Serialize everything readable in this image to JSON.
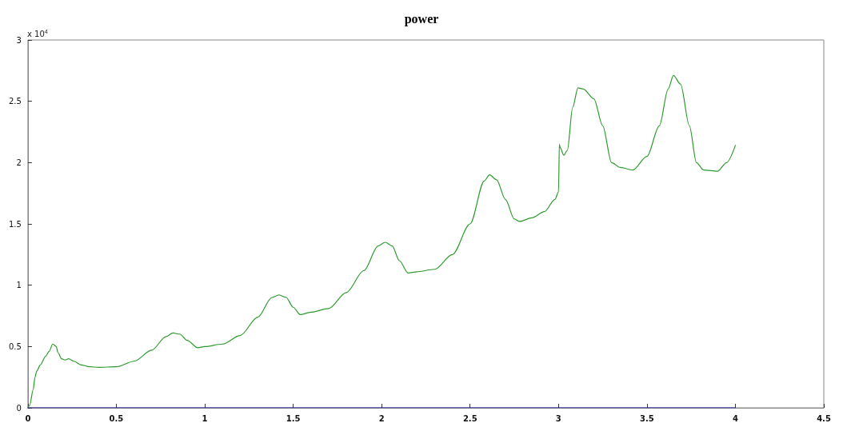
{
  "chart_data": {
    "type": "line",
    "title": "power",
    "annotations": [
      "x 10$^{4}$"
    ],
    "xlim": [
      0,
      4.5
    ],
    "xticks": [
      0,
      0.5,
      1,
      1.5,
      2,
      2.5,
      3,
      3.5,
      4,
      4.5
    ],
    "ylim": [
      0,
      3
    ],
    "yticks": [
      0,
      0.5,
      1,
      1.5,
      2,
      2.5,
      3
    ],
    "grid": false,
    "marker": "none",
    "line_style": "solid",
    "series": [
      {
        "color": "#2e9a2e",
        "x": [
          0,
          0.01,
          0.03,
          0.04,
          0.05,
          0.07,
          0.1,
          0.12,
          0.14,
          0.16,
          0.17,
          0.19,
          0.21,
          0.23,
          0.26,
          0.3,
          0.35,
          0.4,
          0.5,
          0.6,
          0.7,
          0.78,
          0.82,
          0.86,
          0.9,
          0.96,
          1.0,
          1.1,
          1.2,
          1.3,
          1.38,
          1.42,
          1.46,
          1.5,
          1.54,
          1.6,
          1.7,
          1.8,
          1.9,
          1.98,
          2.02,
          2.06,
          2.1,
          2.15,
          2.2,
          2.3,
          2.4,
          2.5,
          2.58,
          2.61,
          2.65,
          2.7,
          2.75,
          2.78,
          2.85,
          2.92,
          2.98,
          3.0,
          3.005,
          3.01,
          3.03,
          3.05,
          3.08,
          3.11,
          3.14,
          3.2,
          3.25,
          3.3,
          3.35,
          3.42,
          3.5,
          3.57,
          3.62,
          3.65,
          3.69,
          3.74,
          3.78,
          3.82,
          3.9,
          3.95,
          4.0
        ],
        "values": [
          0,
          0.02,
          0.15,
          0.25,
          0.3,
          0.35,
          0.42,
          0.46,
          0.52,
          0.5,
          0.45,
          0.4,
          0.39,
          0.4,
          0.38,
          0.35,
          0.335,
          0.33,
          0.335,
          0.38,
          0.47,
          0.58,
          0.61,
          0.6,
          0.55,
          0.49,
          0.5,
          0.52,
          0.59,
          0.74,
          0.9,
          0.92,
          0.9,
          0.82,
          0.76,
          0.78,
          0.81,
          0.94,
          1.12,
          1.32,
          1.35,
          1.32,
          1.2,
          1.1,
          1.11,
          1.13,
          1.25,
          1.5,
          1.85,
          1.9,
          1.86,
          1.7,
          1.54,
          1.52,
          1.55,
          1.6,
          1.7,
          1.76,
          2.15,
          2.12,
          2.06,
          2.1,
          2.45,
          2.61,
          2.6,
          2.52,
          2.3,
          2.0,
          1.96,
          1.94,
          2.05,
          2.3,
          2.6,
          2.71,
          2.64,
          2.3,
          2.0,
          1.94,
          1.93,
          2.0,
          2.14
        ]
      },
      {
        "color": "#1a1ab0",
        "x": [
          0,
          4
        ],
        "values": [
          0,
          0
        ]
      }
    ]
  }
}
